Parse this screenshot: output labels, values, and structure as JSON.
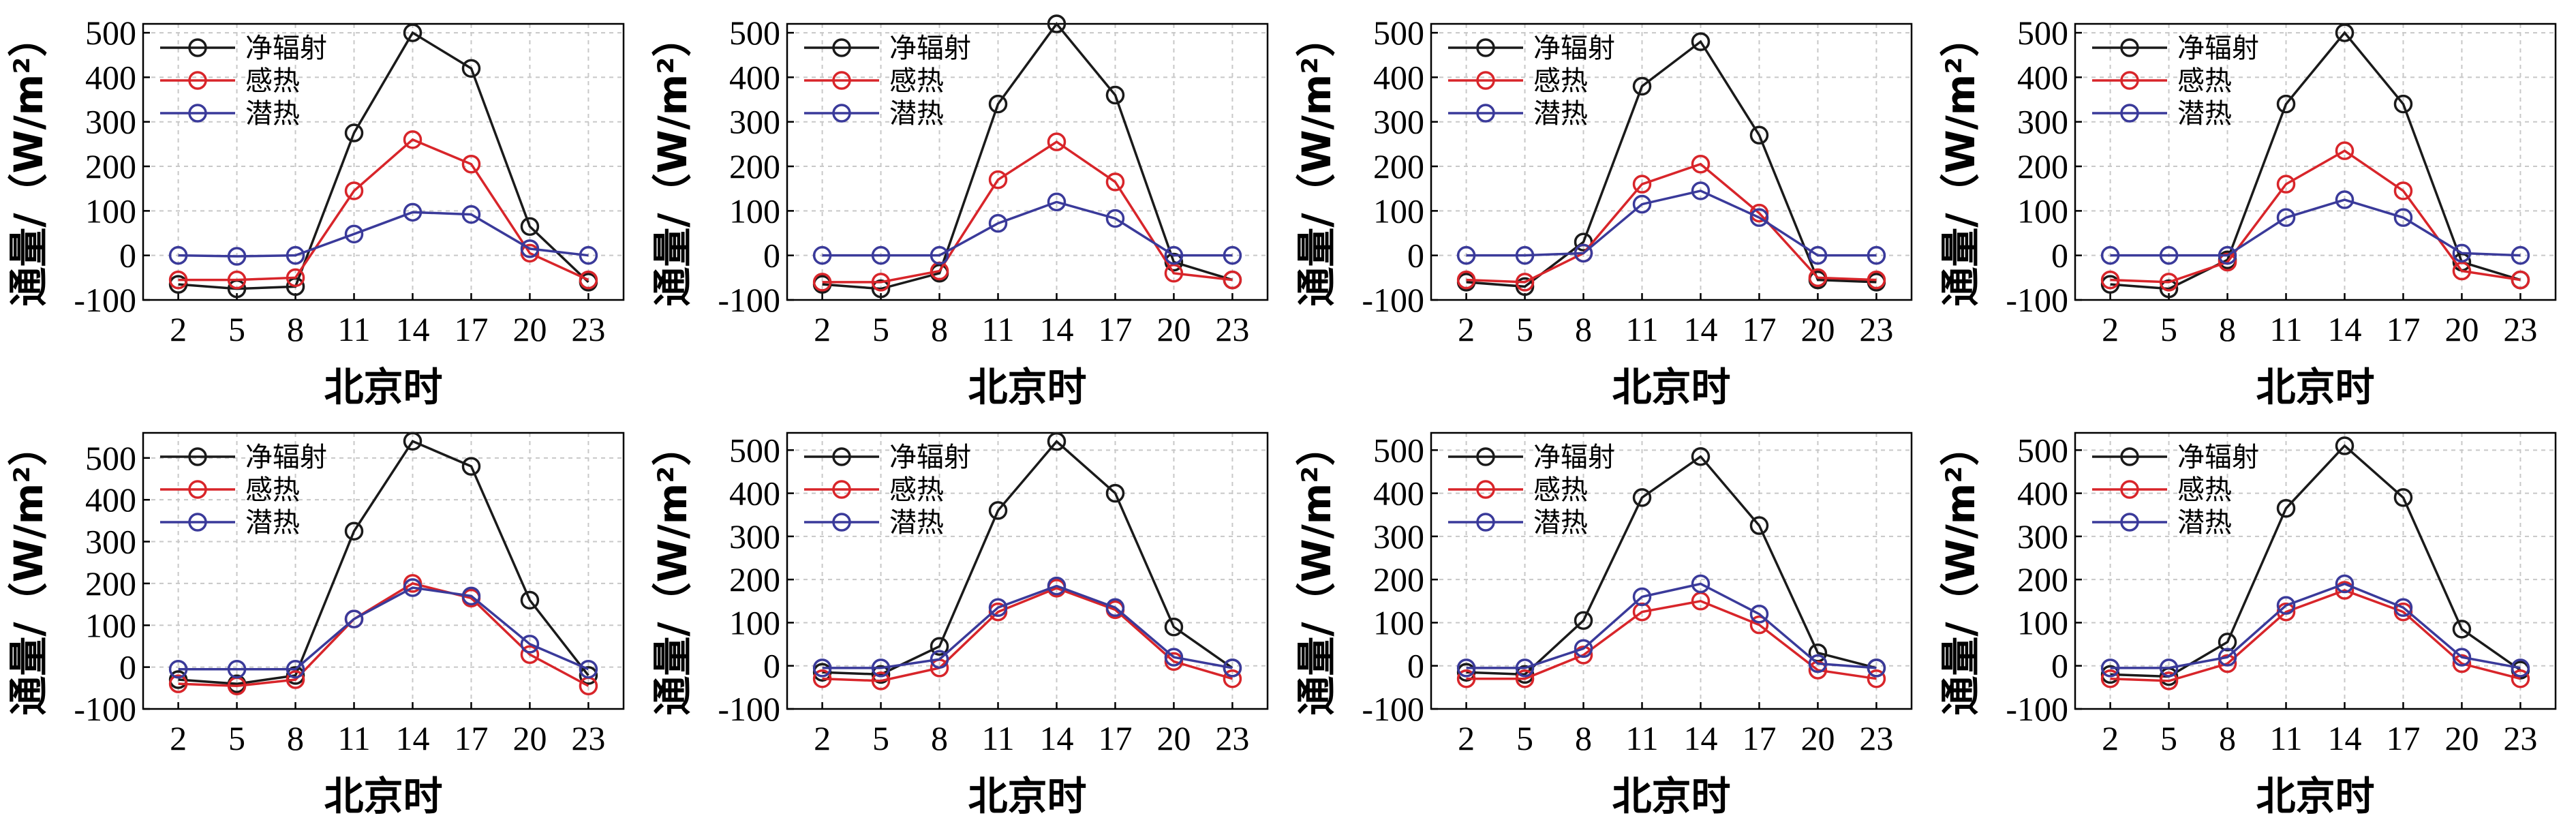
{
  "chart_data": [
    {
      "type": "line",
      "x": [
        2,
        5,
        8,
        11,
        14,
        17,
        20,
        23
      ],
      "xlabel": "北京时",
      "ylabel": "通量/（W/m²）",
      "ylim": [
        -100,
        520
      ],
      "yticks": [
        -100,
        0,
        100,
        200,
        300,
        400,
        500
      ],
      "grid": true,
      "legend_position": "top-left",
      "series": [
        {
          "name": "净辐射",
          "color": "#1a1a1a",
          "values": [
            -65,
            -75,
            -70,
            275,
            500,
            420,
            65,
            -60
          ]
        },
        {
          "name": "感热",
          "color": "#d8252a",
          "values": [
            -55,
            -55,
            -50,
            145,
            260,
            205,
            5,
            -55
          ]
        },
        {
          "name": "潜热",
          "color": "#3a3a9a",
          "values": [
            0,
            -2,
            0,
            48,
            97,
            92,
            15,
            0
          ]
        }
      ]
    },
    {
      "type": "line",
      "x": [
        2,
        5,
        8,
        11,
        14,
        17,
        20,
        23
      ],
      "xlabel": "北京时",
      "ylabel": "通量/（W/m²）",
      "ylim": [
        -100,
        520
      ],
      "yticks": [
        -100,
        0,
        100,
        200,
        300,
        400,
        500
      ],
      "grid": true,
      "legend_position": "top-left",
      "series": [
        {
          "name": "净辐射",
          "color": "#1a1a1a",
          "values": [
            -65,
            -75,
            -40,
            340,
            520,
            360,
            -15,
            -55
          ]
        },
        {
          "name": "感热",
          "color": "#d8252a",
          "values": [
            -60,
            -60,
            -35,
            170,
            255,
            165,
            -40,
            -55
          ]
        },
        {
          "name": "潜热",
          "color": "#3a3a9a",
          "values": [
            0,
            0,
            0,
            72,
            120,
            83,
            0,
            0
          ]
        }
      ]
    },
    {
      "type": "line",
      "x": [
        2,
        5,
        8,
        11,
        14,
        17,
        20,
        23
      ],
      "xlabel": "北京时",
      "ylabel": "通量/（W/m²）",
      "ylim": [
        -100,
        520
      ],
      "yticks": [
        -100,
        0,
        100,
        200,
        300,
        400,
        500
      ],
      "grid": true,
      "legend_position": "top-left",
      "series": [
        {
          "name": "净辐射",
          "color": "#1a1a1a",
          "values": [
            -60,
            -70,
            30,
            380,
            480,
            270,
            -55,
            -60
          ]
        },
        {
          "name": "感热",
          "color": "#d8252a",
          "values": [
            -55,
            -60,
            5,
            160,
            205,
            95,
            -50,
            -55
          ]
        },
        {
          "name": "潜热",
          "color": "#3a3a9a",
          "values": [
            0,
            0,
            5,
            115,
            145,
            85,
            0,
            0
          ]
        }
      ]
    },
    {
      "type": "line",
      "x": [
        2,
        5,
        8,
        11,
        14,
        17,
        20,
        23
      ],
      "xlabel": "北京时",
      "ylabel": "通量/（W/m²）",
      "ylim": [
        -100,
        520
      ],
      "yticks": [
        -100,
        0,
        100,
        200,
        300,
        400,
        500
      ],
      "grid": true,
      "legend_position": "top-left",
      "series": [
        {
          "name": "净辐射",
          "color": "#1a1a1a",
          "values": [
            -65,
            -75,
            -10,
            340,
            500,
            340,
            -15,
            -55
          ]
        },
        {
          "name": "感热",
          "color": "#d8252a",
          "values": [
            -55,
            -60,
            -15,
            160,
            235,
            145,
            -35,
            -55
          ]
        },
        {
          "name": "潜热",
          "color": "#3a3a9a",
          "values": [
            0,
            0,
            0,
            85,
            125,
            85,
            5,
            0
          ]
        }
      ]
    },
    {
      "type": "line",
      "x": [
        2,
        5,
        8,
        11,
        14,
        17,
        20,
        23
      ],
      "xlabel": "北京时",
      "ylabel": "通量/（W/m²）",
      "ylim": [
        -100,
        560
      ],
      "yticks": [
        -100,
        0,
        100,
        200,
        300,
        400,
        500
      ],
      "grid": true,
      "legend_position": "top-left",
      "series": [
        {
          "name": "净辐射",
          "color": "#1a1a1a",
          "values": [
            -30,
            -40,
            -20,
            325,
            540,
            480,
            160,
            -20
          ]
        },
        {
          "name": "感热",
          "color": "#d8252a",
          "values": [
            -40,
            -45,
            -30,
            115,
            200,
            165,
            30,
            -45
          ]
        },
        {
          "name": "潜热",
          "color": "#3a3a9a",
          "values": [
            -5,
            -5,
            -5,
            115,
            190,
            170,
            55,
            -5
          ]
        }
      ]
    },
    {
      "type": "line",
      "x": [
        2,
        5,
        8,
        11,
        14,
        17,
        20,
        23
      ],
      "xlabel": "北京时",
      "ylabel": "通量/（W/m²）",
      "ylim": [
        -100,
        540
      ],
      "yticks": [
        -100,
        0,
        100,
        200,
        300,
        400,
        500
      ],
      "grid": true,
      "legend_position": "top-left",
      "series": [
        {
          "name": "净辐射",
          "color": "#1a1a1a",
          "values": [
            -15,
            -20,
            45,
            360,
            520,
            400,
            90,
            -5
          ]
        },
        {
          "name": "感热",
          "color": "#d8252a",
          "values": [
            -30,
            -35,
            -5,
            125,
            180,
            130,
            10,
            -30
          ]
        },
        {
          "name": "潜热",
          "color": "#3a3a9a",
          "values": [
            -5,
            -5,
            15,
            135,
            185,
            135,
            20,
            -5
          ]
        }
      ]
    },
    {
      "type": "line",
      "x": [
        2,
        5,
        8,
        11,
        14,
        17,
        20,
        23
      ],
      "xlabel": "北京时",
      "ylabel": "通量/（W/m²）",
      "ylim": [
        -100,
        540
      ],
      "yticks": [
        -100,
        0,
        100,
        200,
        300,
        400,
        500
      ],
      "grid": true,
      "legend_position": "top-left",
      "series": [
        {
          "name": "净辐射",
          "color": "#1a1a1a",
          "values": [
            -15,
            -20,
            105,
            390,
            485,
            325,
            30,
            -5
          ]
        },
        {
          "name": "感热",
          "color": "#d8252a",
          "values": [
            -30,
            -30,
            25,
            125,
            150,
            95,
            -10,
            -30
          ]
        },
        {
          "name": "潜热",
          "color": "#3a3a9a",
          "values": [
            -5,
            -5,
            40,
            160,
            190,
            120,
            5,
            -5
          ]
        }
      ]
    },
    {
      "type": "line",
      "x": [
        2,
        5,
        8,
        11,
        14,
        17,
        20,
        23
      ],
      "xlabel": "北京时",
      "ylabel": "通量/（W/m²）",
      "ylim": [
        -100,
        540
      ],
      "yticks": [
        -100,
        0,
        100,
        200,
        300,
        400,
        500
      ],
      "grid": true,
      "legend_position": "top-left",
      "series": [
        {
          "name": "净辐射",
          "color": "#1a1a1a",
          "values": [
            -20,
            -25,
            55,
            365,
            510,
            390,
            85,
            -10
          ]
        },
        {
          "name": "感热",
          "color": "#d8252a",
          "values": [
            -30,
            -35,
            5,
            125,
            175,
            125,
            5,
            -30
          ]
        },
        {
          "name": "潜热",
          "color": "#3a3a9a",
          "values": [
            -5,
            -5,
            20,
            140,
            190,
            135,
            20,
            -5
          ]
        }
      ]
    }
  ]
}
